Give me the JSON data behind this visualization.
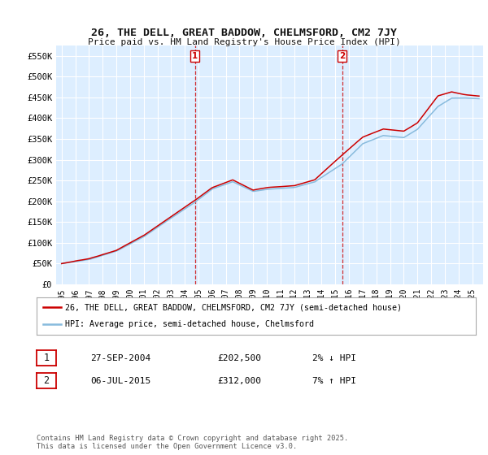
{
  "title": "26, THE DELL, GREAT BADDOW, CHELMSFORD, CM2 7JY",
  "subtitle": "Price paid vs. HM Land Registry's House Price Index (HPI)",
  "ylabel_ticks": [
    "£0",
    "£50K",
    "£100K",
    "£150K",
    "£200K",
    "£250K",
    "£300K",
    "£350K",
    "£400K",
    "£450K",
    "£500K",
    "£550K"
  ],
  "ylim": [
    0,
    575000
  ],
  "xlim_start": 1994.6,
  "xlim_end": 2025.8,
  "line1_color": "#cc0000",
  "line2_color": "#88bbdd",
  "marker1_date": 2004.74,
  "marker1_value": 202500,
  "marker1_label": "1",
  "marker2_date": 2015.5,
  "marker2_value": 312000,
  "marker2_label": "2",
  "vline1_x": 2004.74,
  "vline2_x": 2015.5,
  "legend_line1": "26, THE DELL, GREAT BADDOW, CHELMSFORD, CM2 7JY (semi-detached house)",
  "legend_line2": "HPI: Average price, semi-detached house, Chelmsford",
  "table_row1": [
    "1",
    "27-SEP-2004",
    "£202,500",
    "2% ↓ HPI"
  ],
  "table_row2": [
    "2",
    "06-JUL-2015",
    "£312,000",
    "7% ↑ HPI"
  ],
  "footer": "Contains HM Land Registry data © Crown copyright and database right 2025.\nThis data is licensed under the Open Government Licence v3.0.",
  "background_color": "#ffffff",
  "plot_bg_color": "#ddeeff",
  "grid_color": "#ffffff"
}
